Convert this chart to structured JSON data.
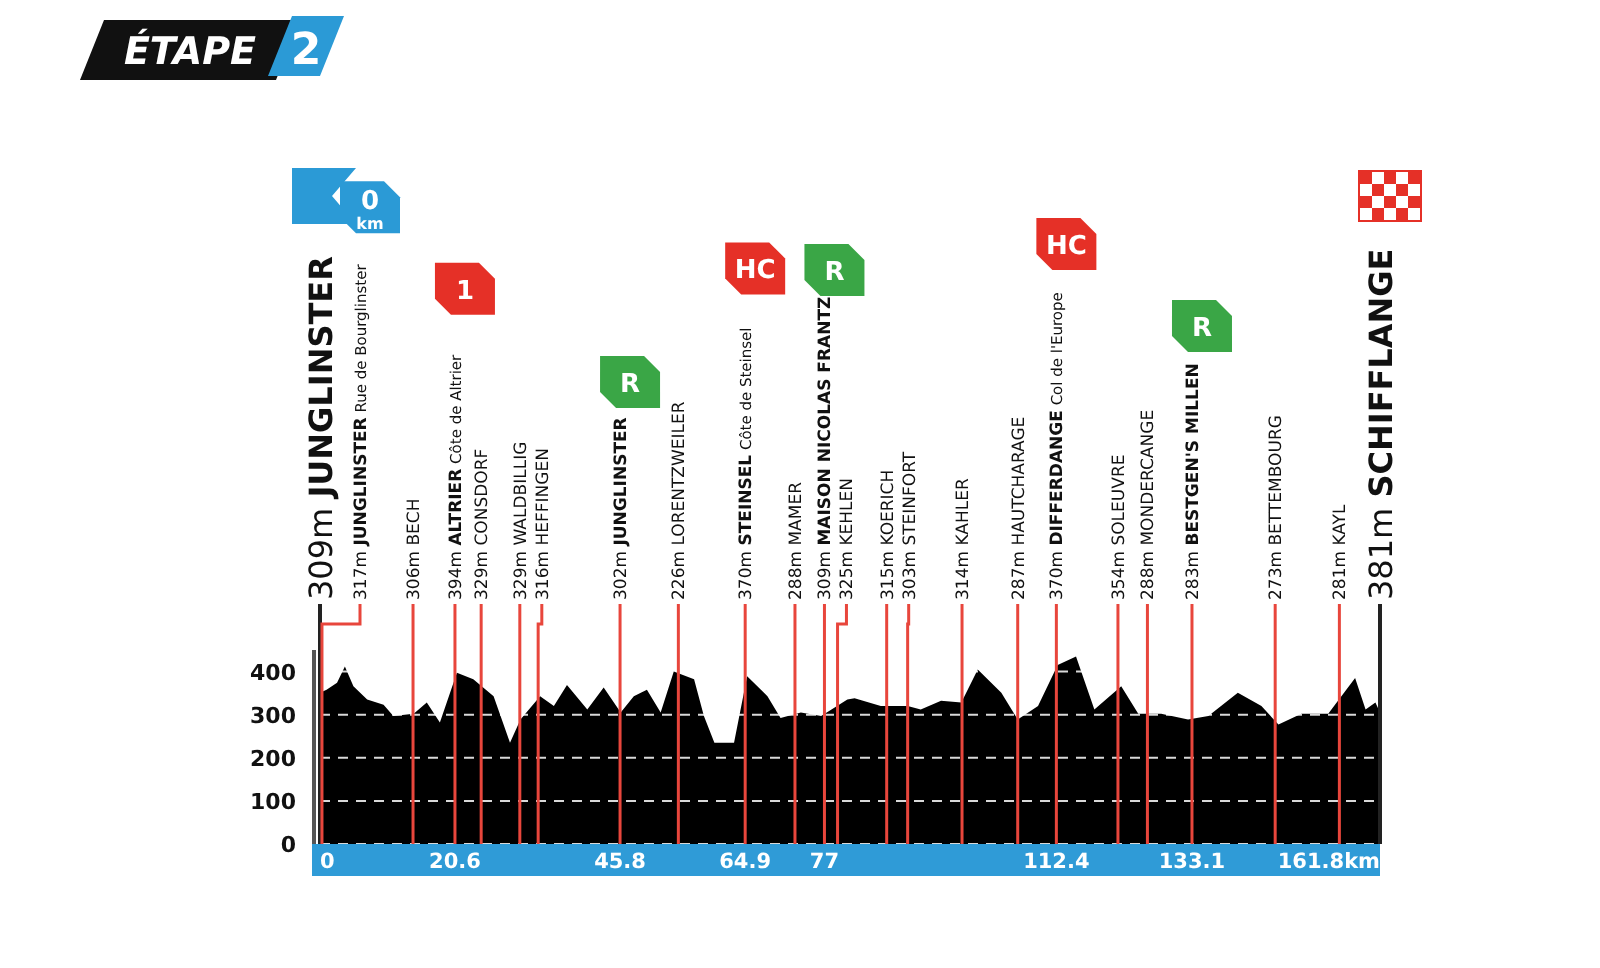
{
  "chart_data": {
    "type": "area",
    "title": "ÉTAPE 2",
    "color": "#000000",
    "x": [
      0,
      1.0,
      2.6,
      3.8,
      5.1,
      7.2,
      9.7,
      11.2,
      14.3,
      16.3,
      18.3,
      20.9,
      23.4,
      26.5,
      29.0,
      30.6,
      33.6,
      35.7,
      37.7,
      40.8,
      43.3,
      45.9,
      47.9,
      49.9,
      52.0,
      54.0,
      57.1,
      58.6,
      60.2,
      63.2,
      65.2,
      68.3,
      70.3,
      73.4,
      76.5,
      80.5,
      81.6,
      85.6,
      89.7,
      91.7,
      94.8,
      97.9,
      100.4,
      104.0,
      106.5,
      109.6,
      112.6,
      115.4,
      118.2,
      122.3,
      124.9,
      128.4,
      132.5,
      135.6,
      140.1,
      143.7,
      146.3,
      149.8,
      153.9,
      158.0,
      159.6,
      161.1,
      161.8
    ],
    "values": [
      351,
      358,
      374,
      412,
      366,
      335,
      323,
      297,
      302,
      328,
      282,
      397,
      382,
      343,
      235,
      289,
      343,
      320,
      369,
      312,
      363,
      305,
      343,
      358,
      305,
      400,
      382,
      297,
      235,
      235,
      389,
      343,
      292,
      305,
      297,
      335,
      338,
      320,
      320,
      312,
      332,
      328,
      405,
      351,
      289,
      320,
      415,
      435,
      312,
      366,
      302,
      302,
      289,
      297,
      351,
      320,
      277,
      302,
      302,
      385,
      312,
      328,
      305
    ],
    "xlim": [
      0,
      161.8
    ],
    "xticks": [
      0,
      20.6,
      45.8,
      64.9,
      77,
      112.4,
      133.1,
      {
        "value": 161.8,
        "label": "161.8km"
      }
    ],
    "ylim": [
      0,
      450
    ],
    "yticks": [
      0,
      100,
      200,
      300,
      400
    ],
    "grid": "y",
    "ref_lines": [
      {
        "axis": "x",
        "value": 0,
        "label": "309m JUNGLINSTER",
        "color": "#222222"
      },
      {
        "axis": "x",
        "value": 0.3,
        "label": "317m JUNGLINSTER Rue de Bourglinster",
        "color": "#e8463c"
      },
      {
        "axis": "x",
        "value": 14.2,
        "label": "306m BECH",
        "color": "#e8463c"
      },
      {
        "axis": "x",
        "value": 20.6,
        "label": "394m ALTRIER Côte de Altrier",
        "color": "#e8463c"
      },
      {
        "axis": "x",
        "value": 24.6,
        "label": "329m CONSDORF",
        "color": "#e8463c"
      },
      {
        "axis": "x",
        "value": 30.5,
        "label": "329m WALDBILLIG",
        "color": "#e8463c"
      },
      {
        "axis": "x",
        "value": 33.3,
        "label": "316m HEFFINGEN",
        "color": "#e8463c"
      },
      {
        "axis": "x",
        "value": 45.8,
        "label": "302m JUNGLINSTER",
        "color": "#e8463c"
      },
      {
        "axis": "x",
        "value": 54.7,
        "label": "226m LORENTZWEILER",
        "color": "#e8463c"
      },
      {
        "axis": "x",
        "value": 64.9,
        "label": "370m STEINSEL Côte de Steinsel",
        "color": "#e8463c"
      },
      {
        "axis": "x",
        "value": 72.5,
        "label": "288m MAMER",
        "color": "#e8463c"
      },
      {
        "axis": "x",
        "value": 77,
        "label": "309m MAISON NICOLAS FRANTZ",
        "color": "#e8463c"
      },
      {
        "axis": "x",
        "value": 79,
        "label": "325m KEHLEN",
        "color": "#e8463c"
      },
      {
        "axis": "x",
        "value": 86.5,
        "label": "315m KOERICH",
        "color": "#e8463c"
      },
      {
        "axis": "x",
        "value": 89.7,
        "label": "303m STEINFORT",
        "color": "#e8463c"
      },
      {
        "axis": "x",
        "value": 98,
        "label": "314m KAHLER",
        "color": "#e8463c"
      },
      {
        "axis": "x",
        "value": 106.5,
        "label": "287m HAUTCHARAGE",
        "color": "#e8463c"
      },
      {
        "axis": "x",
        "value": 112.4,
        "label": "370m DIFFERDANGE Col de l'Europe",
        "color": "#e8463c"
      },
      {
        "axis": "x",
        "value": 121.8,
        "label": "354m SOLEUVRE",
        "color": "#e8463c"
      },
      {
        "axis": "x",
        "value": 126.3,
        "label": "288m MONDERCANGE",
        "color": "#e8463c"
      },
      {
        "axis": "x",
        "value": 133.1,
        "label": "283m BESTGEN'S MILLEN",
        "color": "#e8463c"
      },
      {
        "axis": "x",
        "value": 145.8,
        "label": "273m BETTEMBOURG",
        "color": "#e8463c"
      },
      {
        "axis": "x",
        "value": 155.6,
        "label": "281m KAYL",
        "color": "#e8463c"
      },
      {
        "axis": "x",
        "value": 161.8,
        "label": "381m SCHIFFLANGE",
        "color": "#222222"
      }
    ],
    "annotations": [
      "0 km",
      "1",
      "R",
      "HC",
      "R",
      "HC",
      "R"
    ]
  }
}
